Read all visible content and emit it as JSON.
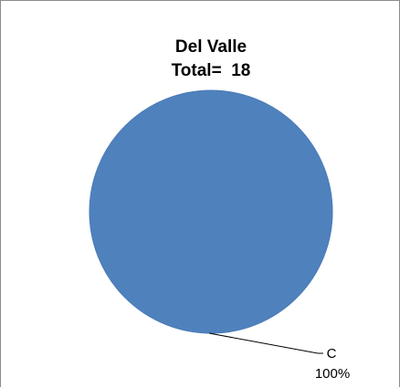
{
  "chart_data": {
    "type": "pie",
    "title": "Del Valle",
    "subtitle": "Total=  18",
    "categories": [
      "C"
    ],
    "values": [
      100
    ],
    "data_labels": [
      {
        "category": "C",
        "percent_label": "100%"
      }
    ],
    "legend": "none",
    "colors": {
      "slice": "#4f81bd",
      "slice_border": "#4a7ab5",
      "leader_line": "#000000",
      "frame": "#8c8c8c"
    }
  }
}
